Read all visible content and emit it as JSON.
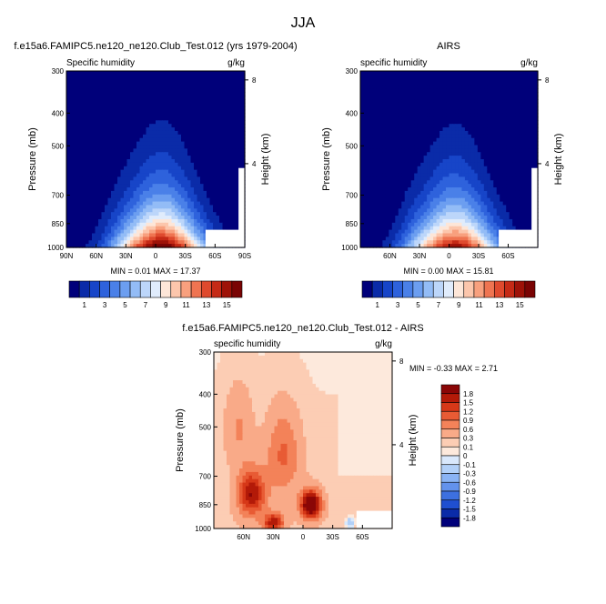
{
  "page_title": "JJA",
  "colormaps": {
    "abs": [
      "#00007a",
      "#0a2ba8",
      "#1745c8",
      "#2e62dc",
      "#4a80e8",
      "#6c9ef0",
      "#93bcf6",
      "#bcd6fa",
      "#e0ecfc",
      "#fde6d8",
      "#fcc6ac",
      "#f8a07e",
      "#ef7451",
      "#df4a2e",
      "#c52a16",
      "#9e1208",
      "#7a0404"
    ],
    "diff": [
      "#00007a",
      "#0a2ba8",
      "#1f4fd0",
      "#3d70e0",
      "#6392ec",
      "#8ab3f4",
      "#b2d0f8",
      "#d9e8fc",
      "#fde9dc",
      "#fccdb4",
      "#f9aa88",
      "#f38259",
      "#e85b34",
      "#d63818",
      "#b31a08",
      "#8a0606"
    ]
  },
  "chart_data": [
    {
      "id": "model",
      "type": "contour",
      "title": "f.e15a6.FAMIPC5.ne120_ne120.Club_Test.012 (yrs 1979-2004)",
      "left_label": "Specific humidity",
      "right_label": "g/kg",
      "xlabel": "",
      "ylabel": "Pressure (mb)",
      "y2label": "Height (km)",
      "x_ticks": [
        "90N",
        "60N",
        "30N",
        "0",
        "30S",
        "60S",
        "90S"
      ],
      "x_range": [
        90,
        -90
      ],
      "y_ticks": [
        300,
        400,
        500,
        700,
        850,
        1000
      ],
      "y_range": [
        300,
        1000
      ],
      "y2_ticks": [
        8,
        4
      ],
      "min": "0.01",
      "max": "17.37",
      "peak_value": 17.37,
      "scale": "abs",
      "levels": [
        1,
        2,
        3,
        4,
        5,
        6,
        7,
        8,
        9,
        10,
        11,
        12,
        13,
        14,
        15,
        16
      ]
    },
    {
      "id": "obs",
      "type": "contour",
      "title": "AIRS",
      "left_label": "specific humidity",
      "right_label": "g/kg",
      "xlabel": "",
      "ylabel": "Pressure (mb)",
      "y2label": "Height (km)",
      "x_ticks": [
        "60N",
        "30N",
        "0",
        "30S",
        "60S"
      ],
      "x_range": [
        90,
        -90
      ],
      "y_ticks": [
        300,
        400,
        500,
        700,
        850,
        1000
      ],
      "y_range": [
        300,
        1000
      ],
      "y2_ticks": [
        8,
        4
      ],
      "min": "0.00",
      "max": "15.81",
      "peak_value": 15.81,
      "scale": "abs",
      "levels": [
        1,
        2,
        3,
        4,
        5,
        6,
        7,
        8,
        9,
        10,
        11,
        12,
        13,
        14,
        15,
        16
      ]
    },
    {
      "id": "diff",
      "type": "contour",
      "title": "f.e15a6.FAMIPC5.ne120_ne120.Club_Test.012 - AIRS",
      "left_label": "specific humidity",
      "right_label": "g/kg",
      "xlabel": "",
      "ylabel": "Pressure (mb)",
      "y2label": "Height (km)",
      "x_ticks": [
        "60N",
        "30N",
        "0",
        "30S",
        "60S"
      ],
      "x_range": [
        90,
        -90
      ],
      "y_ticks": [
        300,
        400,
        500,
        700,
        850,
        1000
      ],
      "y_range": [
        300,
        1000
      ],
      "y2_ticks": [
        8,
        4
      ],
      "min": "-0.33",
      "max": "2.71",
      "scale": "diff",
      "levels": [
        -1.8,
        -1.5,
        -1.2,
        -0.9,
        -0.6,
        -0.3,
        -0.1,
        0,
        0.1,
        0.3,
        0.6,
        0.9,
        1.2,
        1.5,
        1.8
      ]
    }
  ],
  "labelbars": {
    "abs_labels": [
      "1",
      "3",
      "5",
      "7",
      "9",
      "11",
      "13",
      "15"
    ],
    "diff_labels": [
      "1.8",
      "1.5",
      "1.2",
      "0.9",
      "0.6",
      "0.3",
      "0.1",
      "0",
      "-0.1",
      "-0.3",
      "-0.6",
      "-0.9",
      "-1.2",
      "-1.5",
      "-1.8"
    ]
  }
}
